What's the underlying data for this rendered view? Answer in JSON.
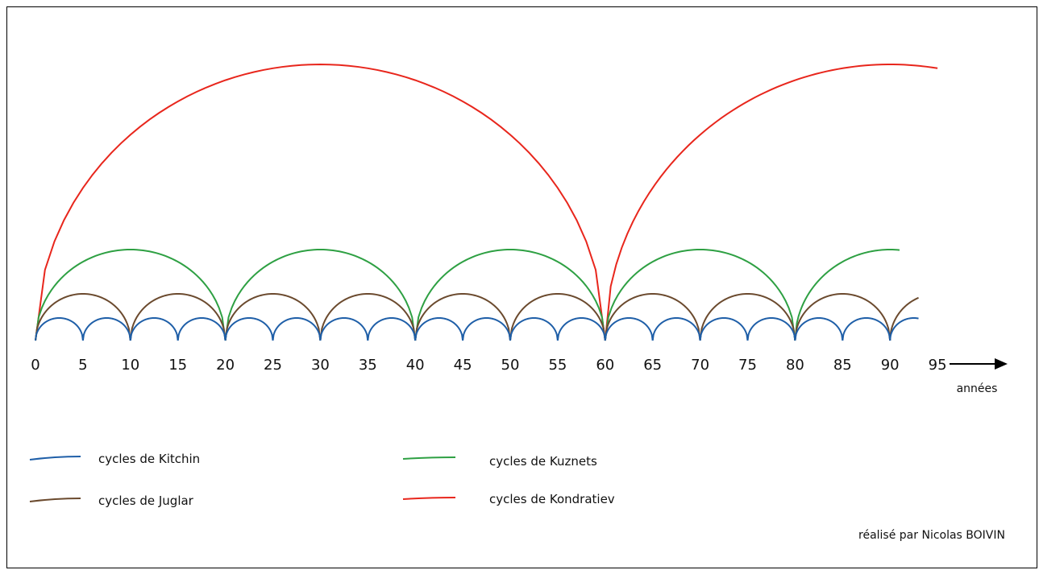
{
  "chart_data": {
    "type": "diagram",
    "x_ticks": [
      0,
      5,
      10,
      15,
      20,
      25,
      30,
      35,
      40,
      45,
      50,
      55,
      60,
      65,
      70,
      75,
      80,
      85,
      90,
      95
    ],
    "x_unit": "années",
    "x_max_drawn": 93,
    "cycles": [
      {
        "key": "kitchin",
        "name": "cycles de Kitchin",
        "period": 5,
        "color": "#1f5fa8",
        "end": 93
      },
      {
        "key": "juglar",
        "name": "cycles de Juglar",
        "period": 10,
        "color": "#6b4a2e",
        "end": 93
      },
      {
        "key": "kuznets",
        "name": "cycles de Kuznets",
        "period": 20,
        "color": "#2ea043",
        "end": 91
      },
      {
        "key": "kondratiev",
        "name": "cycles de Kondratiev",
        "period": 60,
        "color": "#e8261c",
        "end": 95
      }
    ]
  },
  "legend": [
    {
      "key": "kitchin",
      "label": "cycles de Kitchin",
      "color": "#1f5fa8"
    },
    {
      "key": "juglar",
      "label": "cycles de Juglar",
      "color": "#6b4a2e"
    },
    {
      "key": "kuznets",
      "label": "cycles de Kuznets",
      "color": "#2ea043"
    },
    {
      "key": "kondratiev",
      "label": "cycles de Kondratiev",
      "color": "#e8261c"
    }
  ],
  "credit": "réalisé par Nicolas BOIVIN"
}
